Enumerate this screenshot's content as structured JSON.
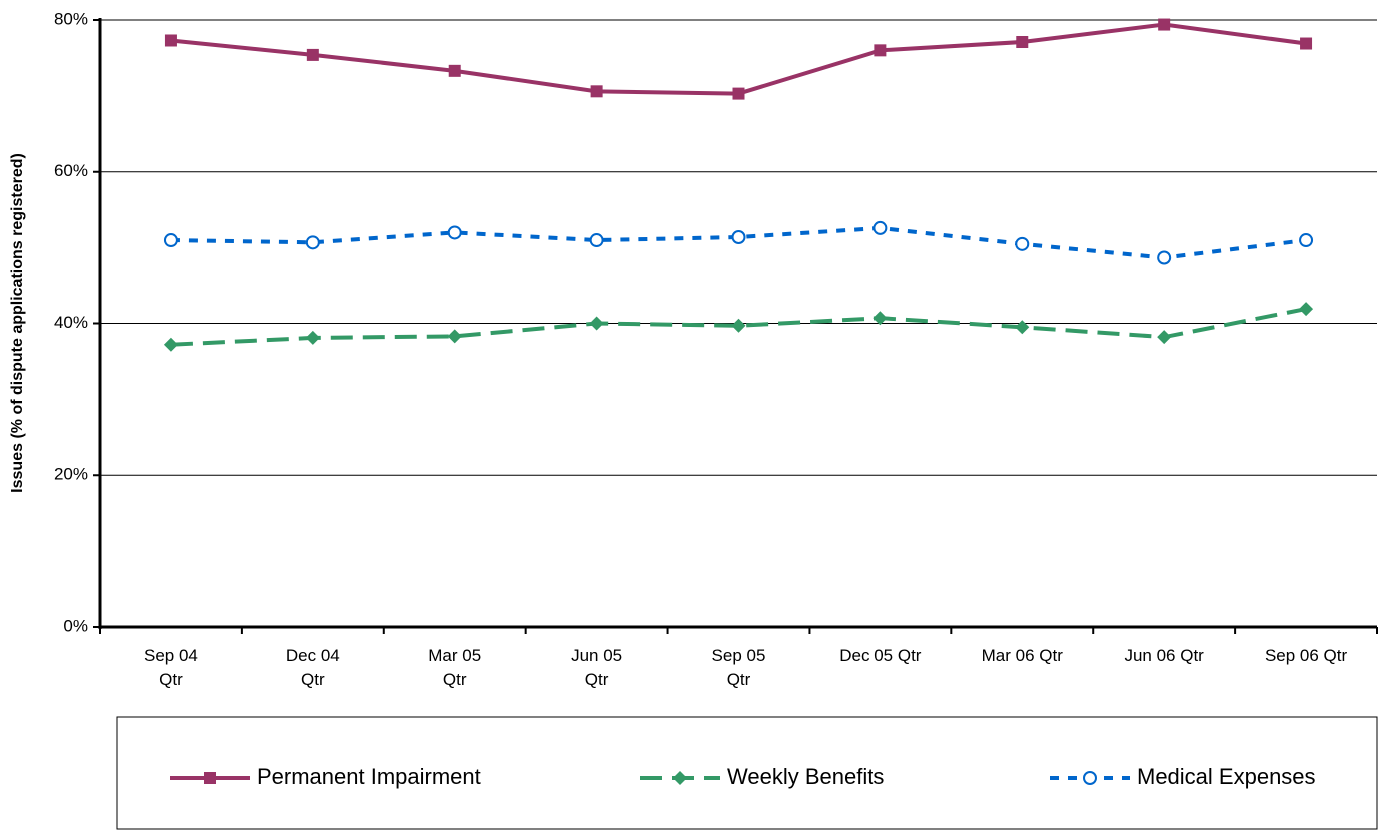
{
  "chart_data": {
    "type": "line",
    "y_label": "Issues (% of dispute applications registered)",
    "categories": [
      "Sep 04\nQtr",
      "Dec 04\nQtr",
      "Mar 05\nQtr",
      "Jun 05\nQtr",
      "Sep 05\nQtr",
      "Dec 05 Qtr",
      "Mar 06 Qtr",
      "Jun 06 Qtr",
      "Sep 06 Qtr"
    ],
    "series": [
      {
        "name": "Permanent Impairment",
        "color": "#993366",
        "marker": "square",
        "dash": "solid",
        "values": [
          77.3,
          75.4,
          73.3,
          70.6,
          70.3,
          76.0,
          77.1,
          79.4,
          76.9
        ]
      },
      {
        "name": "Weekly Benefits",
        "color": "#339966",
        "marker": "diamond",
        "dash": "long-dash",
        "values": [
          37.2,
          38.1,
          38.3,
          40.0,
          39.7,
          40.7,
          39.5,
          38.2,
          41.9
        ]
      },
      {
        "name": "Medical Expenses",
        "color": "#0066cc",
        "marker": "circle",
        "dash": "short-dash",
        "values": [
          51.0,
          50.7,
          52.0,
          51.0,
          51.4,
          52.6,
          50.5,
          48.7,
          51.0
        ]
      }
    ],
    "ylim": [
      0,
      80
    ],
    "yticks": [
      {
        "value": 0,
        "label": "0%"
      },
      {
        "value": 20,
        "label": "20%"
      },
      {
        "value": 40,
        "label": "40%"
      },
      {
        "value": 60,
        "label": "60%"
      },
      {
        "value": 80,
        "label": "80%"
      }
    ],
    "grid": true,
    "legend": "bottom"
  }
}
